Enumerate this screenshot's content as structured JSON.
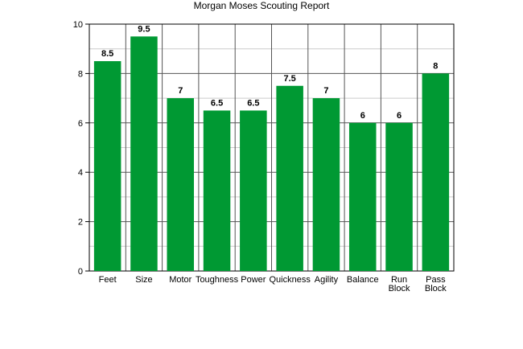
{
  "chart_data": {
    "type": "bar",
    "title": "Morgan Moses Scouting Report",
    "xlabel": "",
    "ylabel": "",
    "ylim": [
      0,
      10
    ],
    "yticks": [
      0,
      2,
      4,
      6,
      8,
      10
    ],
    "grid": true,
    "categories": [
      "Feet",
      "Size",
      "Motor",
      "Toughness",
      "Power",
      "Quickness",
      "Agility",
      "Balance",
      "Run Block",
      "Pass Block"
    ],
    "category_lines": [
      [
        "Feet"
      ],
      [
        "Size"
      ],
      [
        "Motor"
      ],
      [
        "Toughness"
      ],
      [
        "Power"
      ],
      [
        "Quickness"
      ],
      [
        "Agility"
      ],
      [
        "Balance"
      ],
      [
        "Run",
        "Block"
      ],
      [
        "Pass",
        "Block"
      ]
    ],
    "values": [
      8.5,
      9.5,
      7,
      6.5,
      6.5,
      7.5,
      7,
      6,
      6,
      8
    ],
    "value_labels": [
      "8.5",
      "9.5",
      "7",
      "6.5",
      "6.5",
      "7.5",
      "7",
      "6",
      "6",
      "8"
    ],
    "bar_color": "#009933"
  }
}
